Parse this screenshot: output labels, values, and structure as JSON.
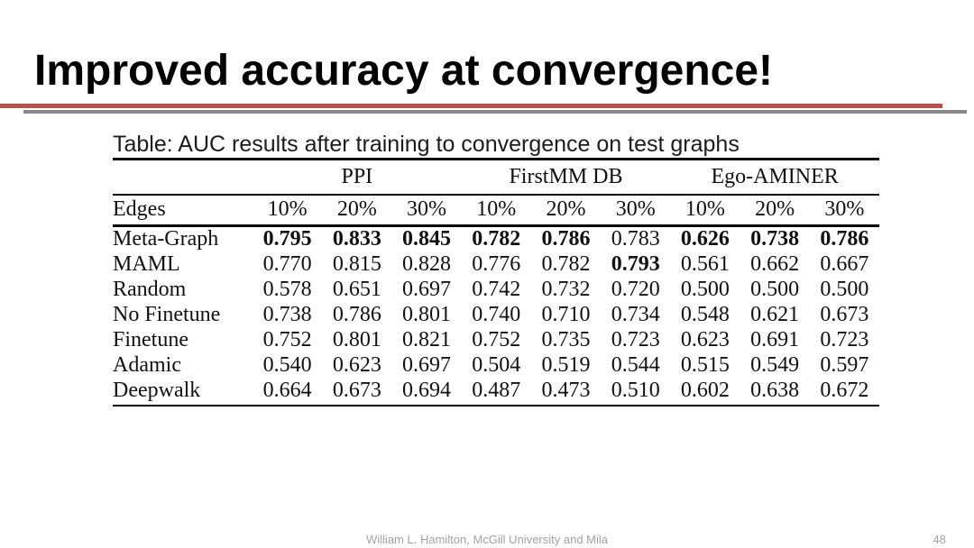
{
  "slide": {
    "title": "Improved accuracy at convergence!"
  },
  "decor": {
    "accent_red": "#b5524e",
    "accent_gray": "#888888"
  },
  "table": {
    "caption": "Table: AUC results after training to convergence on test graphs",
    "row_header": "Edges",
    "groups": [
      {
        "label": "PPI"
      },
      {
        "label": "FirstMM DB"
      },
      {
        "label": "Ego-AMINER"
      }
    ],
    "subheaders": [
      "10%",
      "20%",
      "30%",
      "10%",
      "20%",
      "30%",
      "10%",
      "20%",
      "30%"
    ],
    "rows": [
      {
        "label": "Meta-Graph",
        "values": [
          "0.795",
          "0.833",
          "0.845",
          "0.782",
          "0.786",
          "0.783",
          "0.626",
          "0.738",
          "0.786"
        ],
        "bold": [
          1,
          1,
          1,
          1,
          1,
          0,
          1,
          1,
          1
        ]
      },
      {
        "label": "MAML",
        "values": [
          "0.770",
          "0.815",
          "0.828",
          "0.776",
          "0.782",
          "0.793",
          "0.561",
          "0.662",
          "0.667"
        ],
        "bold": [
          0,
          0,
          0,
          0,
          0,
          1,
          0,
          0,
          0
        ]
      },
      {
        "label": "Random",
        "values": [
          "0.578",
          "0.651",
          "0.697",
          "0.742",
          "0.732",
          "0.720",
          "0.500",
          "0.500",
          "0.500"
        ],
        "bold": [
          0,
          0,
          0,
          0,
          0,
          0,
          0,
          0,
          0
        ]
      },
      {
        "label": "No Finetune",
        "values": [
          "0.738",
          "0.786",
          "0.801",
          "0.740",
          "0.710",
          "0.734",
          "0.548",
          "0.621",
          "0.673"
        ],
        "bold": [
          0,
          0,
          0,
          0,
          0,
          0,
          0,
          0,
          0
        ]
      },
      {
        "label": "Finetune",
        "values": [
          "0.752",
          "0.801",
          "0.821",
          "0.752",
          "0.735",
          "0.723",
          "0.623",
          "0.691",
          "0.723"
        ],
        "bold": [
          0,
          0,
          0,
          0,
          0,
          0,
          0,
          0,
          0
        ]
      },
      {
        "label": "Adamic",
        "values": [
          "0.540",
          "0.623",
          "0.697",
          "0.504",
          "0.519",
          "0.544",
          "0.515",
          "0.549",
          "0.597"
        ],
        "bold": [
          0,
          0,
          0,
          0,
          0,
          0,
          0,
          0,
          0
        ]
      },
      {
        "label": "Deepwalk",
        "values": [
          "0.664",
          "0.673",
          "0.694",
          "0.487",
          "0.473",
          "0.510",
          "0.602",
          "0.638",
          "0.672"
        ],
        "bold": [
          0,
          0,
          0,
          0,
          0,
          0,
          0,
          0,
          0
        ]
      }
    ]
  },
  "footer": {
    "credit": "William L. Hamilton, McGill University and Mila",
    "page_number": "48",
    "text_gray": "#a3a3a3"
  }
}
